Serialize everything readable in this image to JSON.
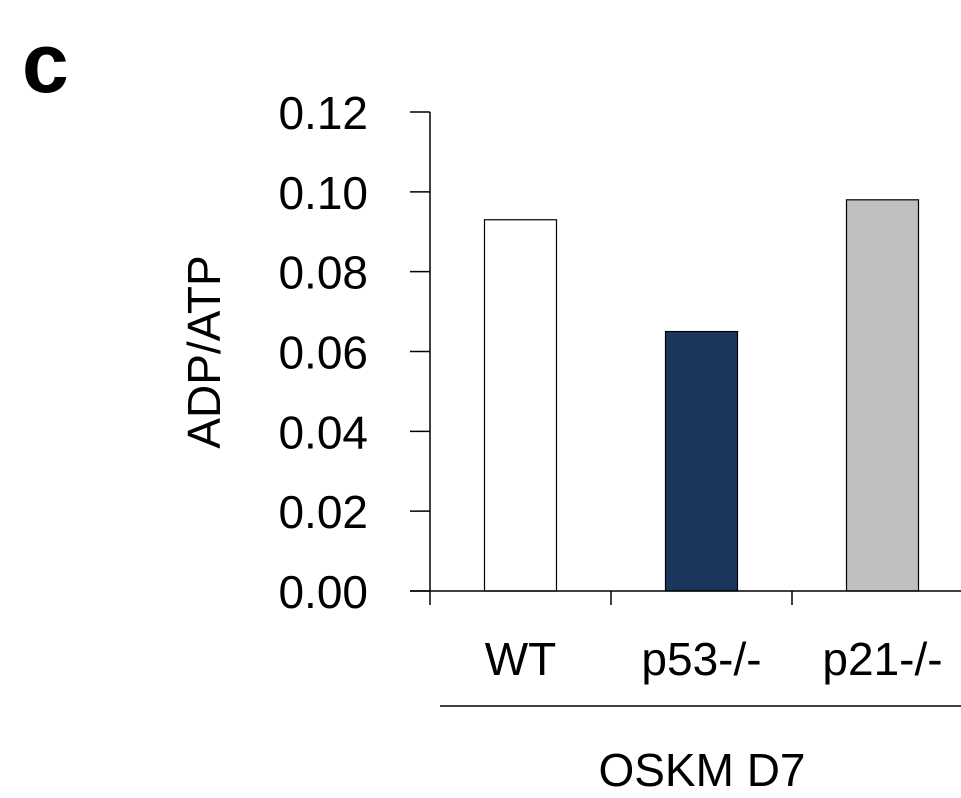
{
  "panel_label": "c",
  "chart_data": {
    "type": "bar",
    "categories": [
      "WT",
      "p53-/-",
      "p21-/-"
    ],
    "values": [
      0.093,
      0.065,
      0.098
    ],
    "colors": [
      "#ffffff",
      "#1b365d",
      "#c0c0c0"
    ],
    "ylabel": "ADP/ATP",
    "yticks": [
      "0.00",
      "0.02",
      "0.04",
      "0.06",
      "0.08",
      "0.10",
      "0.12"
    ],
    "ylim": [
      0,
      0.12
    ],
    "group_label": "OSKM D7",
    "grid": false,
    "legend": "none"
  }
}
